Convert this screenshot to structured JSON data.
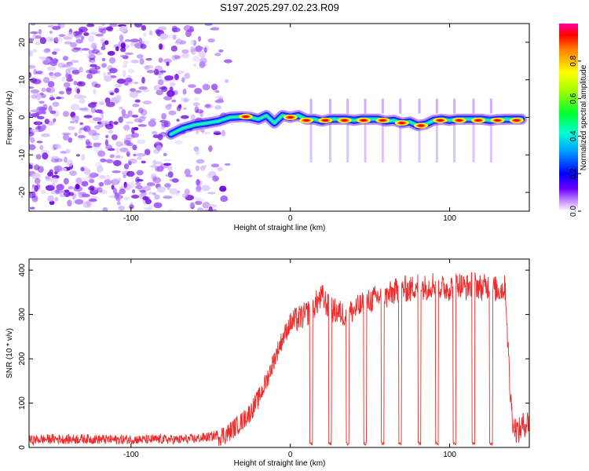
{
  "figure_title": "S197.2025.297.02.23.R09",
  "colors": {
    "background": "#ffffff",
    "snr_line": "#ee2a2a",
    "scatter": "#8a2be2",
    "axis": "#000000"
  },
  "chart_data": [
    {
      "type": "heatmap",
      "name": "spectrogram",
      "title": "",
      "xlabel": "Height of straight line (km)",
      "ylabel": "Frequency (Hz)",
      "xlim": [
        -164,
        150
      ],
      "ylim": [
        -25,
        25
      ],
      "x_ticks": [
        -100,
        0,
        100
      ],
      "x_tick_labels": [
        "-100",
        "0",
        "100"
      ],
      "y_ticks": [
        -20,
        -10,
        0,
        10,
        20
      ],
      "y_tick_labels": [
        "-20",
        "-10",
        "0",
        "10",
        "20"
      ],
      "colorbar": {
        "label": "Normalized spectral amplitude",
        "range": [
          0,
          1
        ],
        "ticks": [
          0.0,
          0.2,
          0.4,
          0.6,
          0.8
        ],
        "tick_labels": [
          "0.0",
          "0.2",
          "0.4",
          "0.6",
          "0.8"
        ]
      },
      "ridge": {
        "x": [
          -75,
          -68,
          -60,
          -52,
          -45,
          -38,
          -30,
          -25,
          -20,
          -15,
          -10,
          -5,
          0,
          5,
          10,
          15,
          20,
          25,
          30,
          35,
          40,
          45,
          50,
          55,
          60,
          65,
          70,
          75,
          80,
          85,
          90,
          95,
          100,
          105,
          110,
          115,
          120,
          125,
          130,
          135,
          140,
          145
        ],
        "y": [
          -4.5,
          -3,
          -2,
          -1.5,
          -1,
          0,
          0.2,
          0,
          -0.5,
          0.5,
          -1.5,
          0.5,
          0,
          0.5,
          -0.5,
          -0.5,
          -1,
          -0.5,
          -0.5,
          -0.5,
          -0.8,
          -0.5,
          -0.5,
          -0.5,
          -1,
          -0.8,
          -1.5,
          -1.2,
          -2.2,
          -1.8,
          -0.8,
          -0.5,
          -0.8,
          -0.5,
          -0.5,
          -0.5,
          -0.5,
          -0.8,
          -0.6,
          -0.5,
          -0.5,
          -0.5
        ]
      },
      "hotspots": [
        {
          "x": -28,
          "y": 0.2,
          "amp": 0.9
        },
        {
          "x": 0,
          "y": 0,
          "amp": 0.95
        },
        {
          "x": 10,
          "y": -0.8,
          "amp": 0.85
        },
        {
          "x": 22,
          "y": -0.8,
          "amp": 0.9
        },
        {
          "x": 34,
          "y": -0.8,
          "amp": 0.88
        },
        {
          "x": 46,
          "y": -0.8,
          "amp": 0.9
        },
        {
          "x": 58,
          "y": -0.8,
          "amp": 0.85
        },
        {
          "x": 70,
          "y": -1.5,
          "amp": 0.9
        },
        {
          "x": 82,
          "y": -2.2,
          "amp": 0.88
        },
        {
          "x": 94,
          "y": -0.8,
          "amp": 0.85
        },
        {
          "x": 106,
          "y": -0.8,
          "amp": 0.9
        },
        {
          "x": 118,
          "y": -0.8,
          "amp": 0.88
        },
        {
          "x": 130,
          "y": -0.8,
          "amp": 0.85
        },
        {
          "x": 142,
          "y": -0.8,
          "amp": 0.9
        }
      ]
    },
    {
      "type": "line",
      "name": "snr",
      "title": "",
      "xlabel": "Height of straight line (km)",
      "ylabel": "SNR (10 * v/v)",
      "xlim": [
        -164,
        150
      ],
      "ylim": [
        0,
        425
      ],
      "x_ticks": [
        -100,
        0,
        100
      ],
      "x_tick_labels": [
        "-100",
        "0",
        "100"
      ],
      "y_ticks": [
        0,
        100,
        200,
        300,
        400
      ],
      "y_tick_labels": [
        "0",
        "100",
        "200",
        "300",
        "400"
      ],
      "series": [
        {
          "name": "SNR",
          "color": "#ee2a2a",
          "x": [
            -164,
            -150,
            -140,
            -130,
            -120,
            -110,
            -100,
            -90,
            -80,
            -70,
            -60,
            -50,
            -40,
            -35,
            -30,
            -25,
            -20,
            -15,
            -10,
            -5,
            0,
            5,
            10,
            15,
            20,
            25,
            30,
            35,
            40,
            45,
            50,
            55,
            60,
            65,
            70,
            75,
            80,
            85,
            90,
            95,
            100,
            105,
            110,
            115,
            120,
            125,
            130,
            135,
            138,
            140,
            143,
            146,
            150
          ],
          "y": [
            12,
            15,
            14,
            15,
            14,
            13,
            14,
            13,
            14,
            13,
            15,
            20,
            30,
            45,
            60,
            80,
            110,
            150,
            200,
            245,
            280,
            290,
            300,
            320,
            340,
            310,
            305,
            300,
            310,
            320,
            330,
            340,
            340,
            350,
            360,
            355,
            370,
            360,
            370,
            360,
            360,
            370,
            360,
            370,
            360,
            365,
            355,
            360,
            120,
            50,
            35,
            50,
            60
          ]
        }
      ],
      "dropouts_x": [
        13,
        25,
        36,
        47,
        58,
        69,
        81,
        92,
        103,
        115,
        126
      ]
    }
  ]
}
